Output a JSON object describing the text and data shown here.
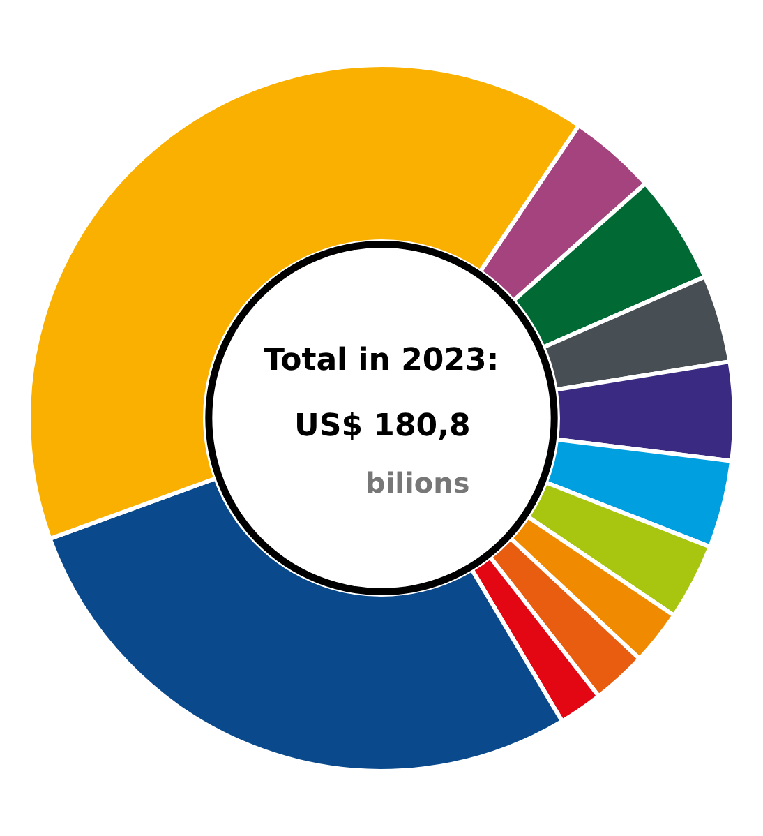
{
  "chart_data": {
    "type": "donut",
    "categories": [
      null,
      null,
      null,
      null,
      null,
      null,
      null,
      null,
      null,
      null,
      null
    ],
    "values": [
      4,
      5,
      4,
      4.5,
      4,
      3.5,
      2.5,
      2.5,
      2,
      28,
      40
    ],
    "colors": [
      "#a5437f",
      "#006934",
      "#474f55",
      "#3a2a82",
      "#00a0e0",
      "#a8c60f",
      "#f08a00",
      "#e85d10",
      "#e30613",
      "#0a4a8c",
      "#f9b000"
    ],
    "annotations": [
      "Total in 2023:",
      "US$ 180,8",
      "bilions"
    ],
    "legend": false
  }
}
